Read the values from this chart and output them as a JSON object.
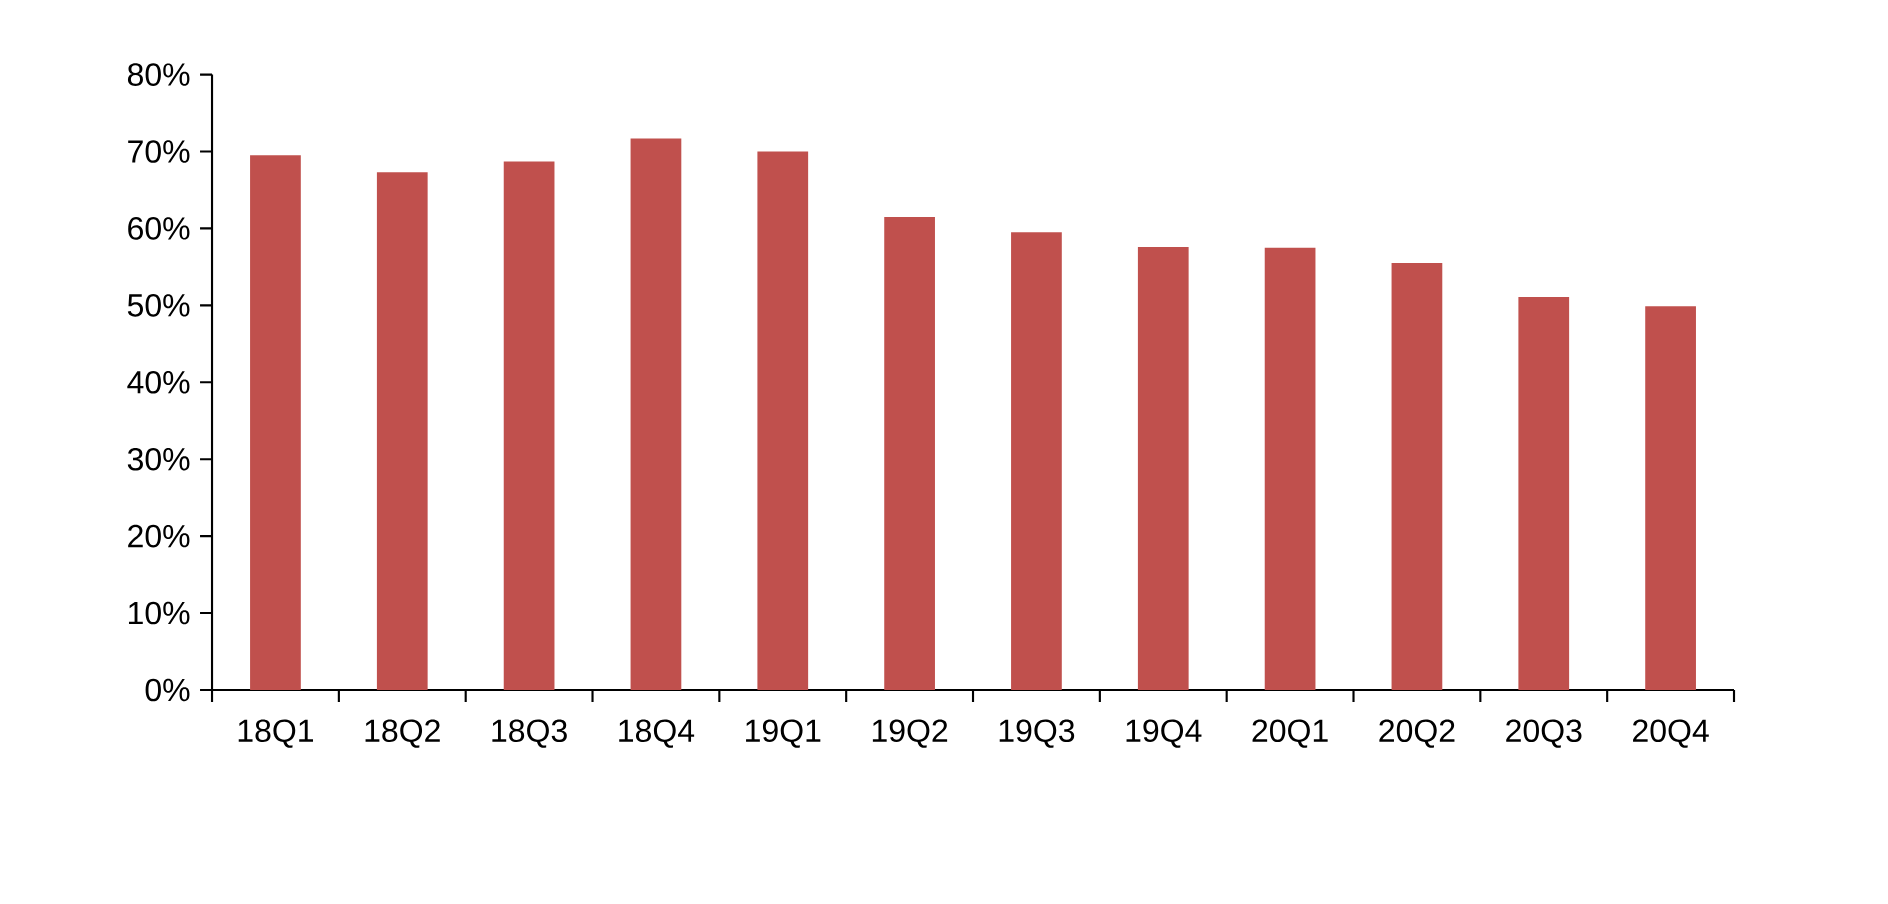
{
  "chart_data": {
    "type": "bar",
    "categories": [
      "18Q1",
      "18Q2",
      "18Q3",
      "18Q4",
      "19Q1",
      "19Q2",
      "19Q3",
      "19Q4",
      "20Q1",
      "20Q2",
      "20Q3",
      "20Q4"
    ],
    "values": [
      69.5,
      67.3,
      68.7,
      71.7,
      70.0,
      61.5,
      59.5,
      57.6,
      57.5,
      55.5,
      51.1,
      49.9
    ],
    "color": "#c0504d",
    "ylim": [
      0,
      80
    ],
    "yticks": [
      {
        "value": 0,
        "label": "0%"
      },
      {
        "value": 10,
        "label": "10%"
      },
      {
        "value": 20,
        "label": "20%"
      },
      {
        "value": 30,
        "label": "30%"
      },
      {
        "value": 40,
        "label": "40%"
      },
      {
        "value": 50,
        "label": "50%"
      },
      {
        "value": 60,
        "label": "60%"
      },
      {
        "value": 70,
        "label": "70%"
      },
      {
        "value": 80,
        "label": "80%"
      }
    ]
  }
}
